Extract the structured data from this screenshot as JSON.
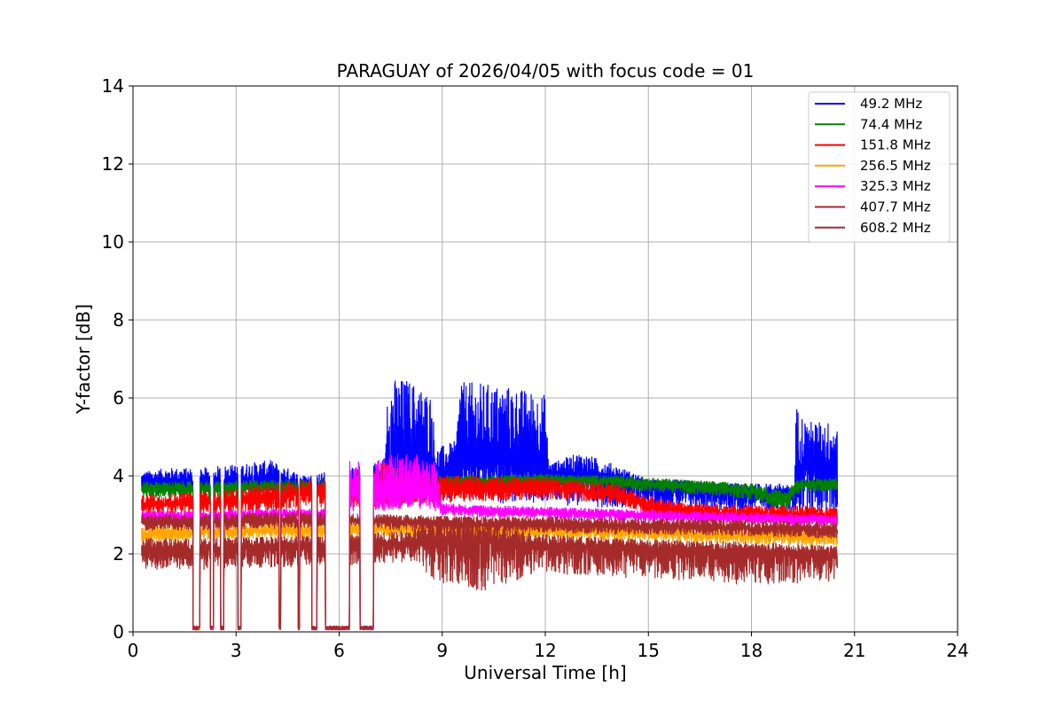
{
  "chart_data": {
    "type": "line",
    "title": "PARAGUAY of 2026/04/05 with focus code = 01",
    "xlabel": "Universal Time [h]",
    "ylabel": "Y-factor [dB]",
    "xlim": [
      0,
      24
    ],
    "ylim": [
      0,
      14
    ],
    "xticks": [
      0,
      3,
      6,
      9,
      12,
      15,
      18,
      21,
      24
    ],
    "yticks": [
      0,
      2,
      4,
      6,
      8,
      10,
      12,
      14
    ],
    "xtick_labels": [
      "0",
      "3",
      "6",
      "9",
      "12",
      "15",
      "18",
      "21",
      "24"
    ],
    "ytick_labels": [
      "0",
      "2",
      "4",
      "6",
      "8",
      "10",
      "12",
      "14"
    ],
    "grid": true,
    "legend_position": "top-right",
    "gaps": [
      [
        1.75,
        1.95
      ],
      [
        2.25,
        2.35
      ],
      [
        2.55,
        2.65
      ],
      [
        3.05,
        3.15
      ],
      [
        4.25,
        4.3
      ],
      [
        4.8,
        4.85
      ],
      [
        5.2,
        5.35
      ],
      [
        5.6,
        6.3
      ],
      [
        6.6,
        7.0
      ]
    ],
    "series": [
      {
        "name": " 49.2 MHz",
        "color": "#0000ff",
        "x": [
          0.25,
          1.0,
          2.0,
          3.0,
          4.0,
          5.0,
          6.3,
          7.2,
          7.35,
          7.4,
          8.0,
          8.7,
          8.8,
          9.4,
          9.55,
          9.6,
          10.0,
          11.0,
          12.0,
          12.1,
          13.0,
          14.0,
          15.0,
          16.0,
          17.0,
          18.0,
          19.0,
          19.25,
          19.3,
          19.6,
          20.0,
          20.5
        ],
        "base": [
          3.75,
          3.8,
          3.75,
          3.8,
          3.85,
          3.7,
          3.7,
          3.8,
          3.9,
          4.3,
          4.3,
          4.3,
          4.0,
          4.0,
          4.3,
          4.5,
          4.4,
          4.3,
          4.2,
          4.0,
          4.0,
          3.8,
          3.7,
          3.6,
          3.6,
          3.5,
          3.5,
          3.4,
          4.3,
          4.2,
          4.2,
          4.1
        ],
        "top": [
          4.1,
          4.2,
          4.2,
          4.3,
          4.4,
          4.0,
          4.2,
          4.4,
          4.5,
          6.5,
          6.5,
          6.1,
          4.7,
          4.9,
          7.0,
          6.4,
          6.4,
          6.3,
          6.1,
          4.3,
          4.6,
          4.3,
          3.9,
          3.9,
          3.8,
          3.8,
          3.8,
          3.6,
          5.8,
          5.4,
          5.4,
          5.4
        ],
        "bottom": [
          3.6,
          3.6,
          3.6,
          3.6,
          3.6,
          3.5,
          3.5,
          3.5,
          3.5,
          3.4,
          3.4,
          3.4,
          3.4,
          3.4,
          3.4,
          3.3,
          3.3,
          3.3,
          3.3,
          3.3,
          3.2,
          3.2,
          3.2,
          3.2,
          3.1,
          3.1,
          3.0,
          3.0,
          3.0,
          3.0,
          3.0,
          3.0
        ]
      },
      {
        "name": " 74.4 MHz",
        "color": "#008000",
        "x": [
          0.25,
          2.0,
          4.0,
          6.0,
          8.0,
          10.0,
          12.0,
          14.0,
          16.0,
          18.0,
          19.0,
          19.3,
          20.5
        ],
        "base": [
          3.65,
          3.65,
          3.7,
          3.7,
          3.8,
          3.85,
          3.9,
          3.85,
          3.75,
          3.6,
          3.35,
          3.75,
          3.8
        ],
        "top": [
          3.85,
          3.85,
          3.9,
          3.9,
          4.0,
          4.0,
          4.05,
          4.0,
          3.9,
          3.8,
          3.6,
          3.9,
          3.95
        ],
        "bottom": [
          3.45,
          3.45,
          3.5,
          3.5,
          3.6,
          3.65,
          3.7,
          3.65,
          3.55,
          3.4,
          3.1,
          3.55,
          3.6
        ]
      },
      {
        "name": " 151.8 MHz",
        "color": "#ff0000",
        "x": [
          0.25,
          2.0,
          4.0,
          5.0,
          6.0,
          7.0,
          8.8,
          10.0,
          12.0,
          14.0,
          15.0,
          16.0,
          18.0,
          20.5
        ],
        "base": [
          3.25,
          3.3,
          3.4,
          3.55,
          3.5,
          3.4,
          3.6,
          3.65,
          3.7,
          3.55,
          3.2,
          3.1,
          3.0,
          2.95
        ],
        "top": [
          3.5,
          3.6,
          3.8,
          3.9,
          3.85,
          4.4,
          4.0,
          4.0,
          3.95,
          3.8,
          3.5,
          3.3,
          3.25,
          3.2
        ],
        "bottom": [
          3.0,
          3.0,
          3.1,
          3.2,
          3.2,
          3.2,
          3.3,
          3.35,
          3.4,
          3.3,
          3.0,
          2.9,
          2.8,
          2.75
        ]
      },
      {
        "name": " 256.5 MHz",
        "color": "#ffa500",
        "x": [
          0.25,
          2.0,
          4.0,
          6.0,
          8.0,
          10.0,
          12.0,
          14.0,
          16.0,
          18.0,
          20.5
        ],
        "base": [
          2.5,
          2.55,
          2.6,
          2.6,
          2.65,
          2.6,
          2.6,
          2.55,
          2.5,
          2.45,
          2.4
        ],
        "top": [
          2.7,
          2.75,
          2.8,
          2.8,
          2.85,
          2.8,
          2.8,
          2.75,
          2.7,
          2.65,
          2.6
        ],
        "bottom": [
          2.3,
          2.35,
          2.4,
          2.4,
          2.45,
          2.4,
          2.4,
          2.35,
          2.3,
          2.25,
          2.2
        ]
      },
      {
        "name": " 325.3 MHz",
        "color": "#ff00ff",
        "x": [
          0.25,
          2.0,
          4.0,
          6.0,
          6.3,
          6.6,
          7.2,
          8.0,
          8.8,
          9.0,
          10.0,
          12.0,
          14.0,
          16.0,
          18.0,
          20.5
        ],
        "base": [
          2.95,
          2.95,
          3.0,
          3.0,
          3.6,
          3.6,
          3.5,
          3.6,
          3.5,
          3.15,
          3.1,
          3.05,
          3.0,
          2.95,
          2.9,
          2.85
        ],
        "top": [
          3.1,
          3.1,
          3.15,
          3.15,
          4.4,
          4.4,
          4.5,
          4.6,
          4.4,
          3.3,
          3.25,
          3.2,
          3.15,
          3.1,
          3.05,
          3.0
        ],
        "bottom": [
          2.8,
          2.8,
          2.85,
          2.85,
          3.1,
          3.1,
          3.1,
          3.2,
          3.1,
          3.0,
          2.95,
          2.9,
          2.85,
          2.8,
          2.75,
          2.7
        ]
      },
      {
        "name": " 407.7 MHz",
        "color": "#a52a2a",
        "x": [
          0.25,
          2.0,
          4.0,
          6.0,
          8.0,
          10.0,
          12.0,
          14.0,
          16.0,
          18.0,
          20.5
        ],
        "base": [
          2.8,
          2.8,
          2.85,
          2.85,
          2.8,
          2.75,
          2.75,
          2.7,
          2.7,
          2.65,
          2.6
        ],
        "top": [
          3.0,
          3.0,
          3.05,
          3.05,
          3.0,
          2.95,
          2.95,
          2.9,
          2.9,
          2.85,
          2.8
        ],
        "bottom": [
          2.6,
          2.6,
          2.65,
          2.65,
          2.6,
          2.55,
          2.55,
          2.5,
          2.5,
          2.45,
          2.4
        ]
      },
      {
        "name": " 608.2 MHz",
        "color": "#a52a2a",
        "x": [
          0.25,
          2.0,
          4.0,
          6.0,
          8.0,
          9.0,
          10.0,
          12.0,
          14.0,
          16.0,
          18.0,
          20.5
        ],
        "base": [
          2.05,
          2.1,
          2.15,
          2.2,
          2.25,
          2.3,
          2.3,
          2.2,
          2.15,
          2.1,
          2.0,
          1.95
        ],
        "top": [
          2.4,
          2.4,
          2.45,
          2.5,
          2.6,
          2.9,
          2.8,
          2.5,
          2.4,
          2.35,
          2.3,
          2.2
        ],
        "bottom": [
          1.6,
          1.6,
          1.65,
          1.7,
          1.8,
          1.2,
          1.0,
          1.5,
          1.4,
          1.3,
          1.2,
          1.3
        ]
      }
    ]
  }
}
